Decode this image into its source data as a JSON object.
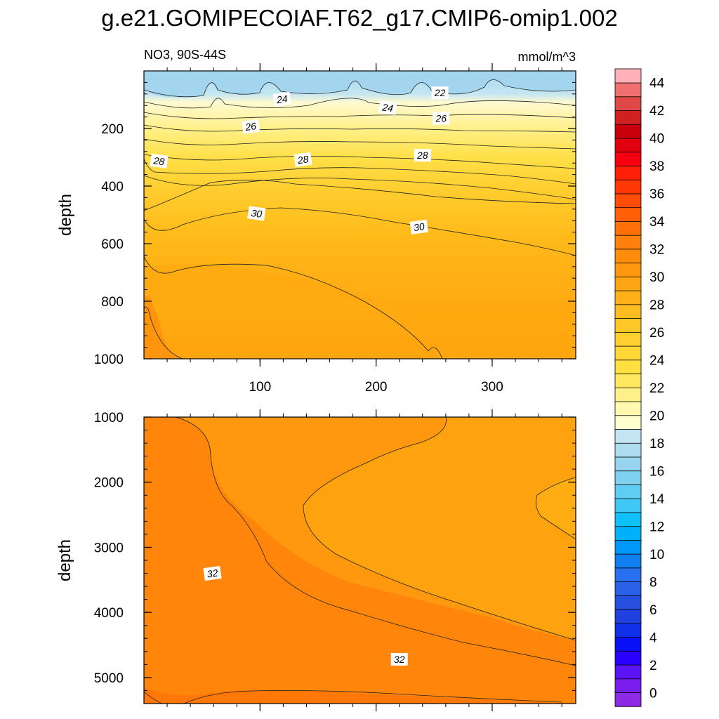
{
  "title": "g.e21.GOMIPECOIAF.T62_g17.CMIP6-omip1.002",
  "chart_data": [
    {
      "type": "heatmap",
      "subtitle_left": "NO3, 90S-44S",
      "subtitle_right": "mmol/m^3",
      "ylabel": "depth",
      "xlabel": "",
      "xlim": [
        0,
        372
      ],
      "ylim": [
        1000,
        0
      ],
      "xticks": [
        100,
        200,
        300
      ],
      "yticks": [
        200,
        400,
        600,
        800,
        1000
      ],
      "contour_levels": [
        20,
        21,
        22,
        23,
        24,
        25,
        26,
        27,
        28,
        29,
        30,
        31,
        32
      ],
      "contour_labels": [
        {
          "text": "24",
          "x": 119,
          "y": 98
        },
        {
          "text": "22",
          "x": 255,
          "y": 76
        },
        {
          "text": "24",
          "x": 210,
          "y": 128
        },
        {
          "text": "26",
          "x": 92,
          "y": 193
        },
        {
          "text": "26",
          "x": 256,
          "y": 165
        },
        {
          "text": "28",
          "x": 13,
          "y": 313
        },
        {
          "text": "28",
          "x": 137,
          "y": 308
        },
        {
          "text": "28",
          "x": 240,
          "y": 293
        },
        {
          "text": "30",
          "x": 97,
          "y": 495
        },
        {
          "text": "30",
          "x": 237,
          "y": 542
        }
      ]
    },
    {
      "type": "heatmap",
      "ylabel": "depth",
      "xlabel": "",
      "xlim": [
        0,
        372
      ],
      "ylim": [
        5400,
        1000
      ],
      "xticks": [
        100,
        200,
        300
      ],
      "yticks": [
        1000,
        2000,
        3000,
        4000,
        5000
      ],
      "contour_levels": [
        30,
        31,
        32,
        33
      ],
      "contour_labels": [
        {
          "text": "32",
          "x": 59,
          "y": 3400
        },
        {
          "text": "32",
          "x": 220,
          "y": 4720
        }
      ]
    }
  ],
  "colorbar": {
    "labels": [
      "0",
      "2",
      "4",
      "6",
      "8",
      "10",
      "12",
      "14",
      "16",
      "18",
      "20",
      "22",
      "24",
      "26",
      "28",
      "30",
      "32",
      "34",
      "36",
      "38",
      "40",
      "42",
      "44"
    ],
    "colors": [
      "#8c2ae6",
      "#7a1ef0",
      "#5a14f5",
      "#2a00ff",
      "#0a10f8",
      "#1030e8",
      "#2040e0",
      "#2850e0",
      "#2860e8",
      "#2870f0",
      "#1080f0",
      "#0098f8",
      "#00b0f8",
      "#10c0f8",
      "#40c8f4",
      "#60cdf2",
      "#80d0f0",
      "#98d4ee",
      "#b0dcf0",
      "#c4e4f2",
      "#ffffd0",
      "#fff8b0",
      "#fff08a",
      "#ffe860",
      "#ffe040",
      "#ffd838",
      "#ffd030",
      "#ffc828",
      "#ffbc20",
      "#ffb018",
      "#ffa412",
      "#ff980e",
      "#ff8c0a",
      "#ff800a",
      "#ff7008",
      "#ff6008",
      "#ff4c06",
      "#ff3806",
      "#ff2008",
      "#f80010",
      "#e00010",
      "#c8000c",
      "#d02020",
      "#e04848",
      "#f07070",
      "#ffb0b8"
    ]
  }
}
